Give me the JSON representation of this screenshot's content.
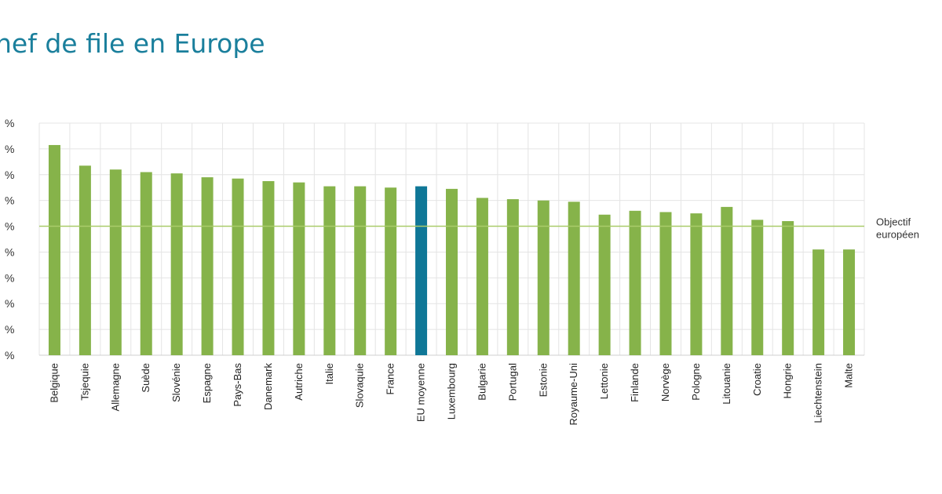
{
  "title": "hef de file en Europe",
  "colors": {
    "bar": "#86b34a",
    "highlight": "#0f7797",
    "reference_line": "#a9cc6a",
    "grid": "#e4e4e4",
    "title": "#1a7f9c"
  },
  "chart_data": {
    "type": "bar",
    "title": "hef de file en Europe",
    "xlabel": "",
    "ylabel": "",
    "ylim": [
      0,
      9
    ],
    "grid": true,
    "y_tick_labels": [
      "%",
      "%",
      "%",
      "%",
      "%",
      "%",
      "%",
      "%",
      "%",
      "%"
    ],
    "categories": [
      "Belgique",
      "Tsjequie",
      "Allemagne",
      "Suède",
      "Slovénie",
      "Espagne",
      "Pays-Bas",
      "Danemark",
      "Autriche",
      "Italie",
      "Slovaquie",
      "France",
      "EU moyenne",
      "Luxembourg",
      "Bulgarie",
      "Portugal",
      "Estonie",
      "Royaume-Uni",
      "Lettonie",
      "Finlande",
      "Norvège",
      "Pologne",
      "Litouanie",
      "Croatie",
      "Hongrie",
      "Liechtenstein",
      "Malte"
    ],
    "values": [
      8.15,
      7.35,
      7.2,
      7.1,
      7.05,
      6.9,
      6.85,
      6.75,
      6.7,
      6.55,
      6.55,
      6.5,
      6.55,
      6.45,
      6.1,
      6.05,
      6.0,
      5.95,
      5.45,
      5.6,
      5.55,
      5.5,
      5.75,
      5.25,
      5.2,
      4.1,
      4.1
    ],
    "highlight_category": "EU moyenne",
    "reference_line": {
      "value": 5,
      "label": [
        "Objectif",
        "européen"
      ]
    }
  }
}
